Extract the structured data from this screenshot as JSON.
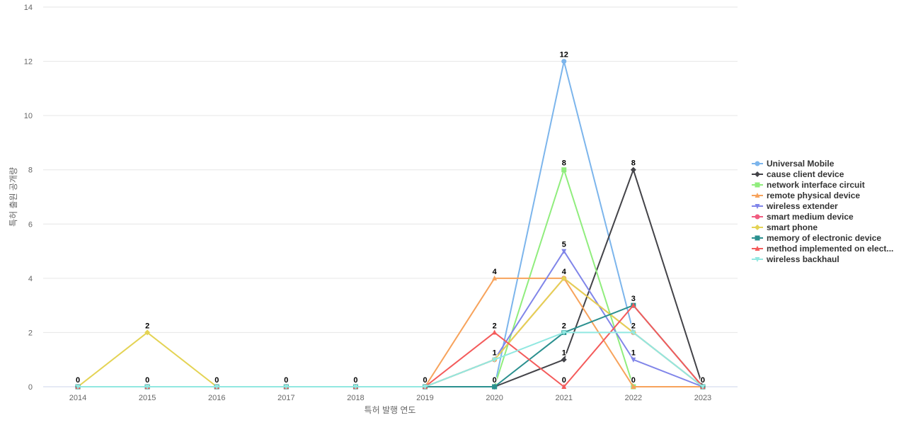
{
  "chart_data": {
    "type": "line",
    "title": "",
    "xlabel": "특허 발행 연도",
    "ylabel": "특허 출원 공개량",
    "categories": [
      "2014",
      "2015",
      "2016",
      "2017",
      "2018",
      "2019",
      "2020",
      "2021",
      "2022",
      "2023"
    ],
    "ylim": [
      0,
      14
    ],
    "yticks": [
      0,
      2,
      4,
      6,
      8,
      10,
      12,
      14
    ],
    "grid": true,
    "legend_position": "right",
    "series": [
      {
        "name": "Universal Mobile",
        "color": "#7cb5ec",
        "marker": "circle",
        "values": [
          0,
          0,
          0,
          0,
          0,
          0,
          0,
          12,
          2,
          0
        ]
      },
      {
        "name": "cause client device",
        "color": "#434348",
        "marker": "diamond",
        "values": [
          0,
          0,
          0,
          0,
          0,
          0,
          0,
          1,
          8,
          0
        ]
      },
      {
        "name": "network interface circuit",
        "color": "#90ed7d",
        "marker": "square",
        "values": [
          0,
          0,
          0,
          0,
          0,
          0,
          0,
          8,
          0,
          0
        ]
      },
      {
        "name": "remote physical device",
        "color": "#f7a35c",
        "marker": "triangle",
        "values": [
          0,
          0,
          0,
          0,
          0,
          0,
          4,
          4,
          0,
          0
        ]
      },
      {
        "name": "wireless extender",
        "color": "#8085e9",
        "marker": "triangle-down",
        "values": [
          0,
          0,
          0,
          0,
          0,
          0,
          1,
          5,
          1,
          0
        ]
      },
      {
        "name": "smart medium device",
        "color": "#f15c80",
        "marker": "circle",
        "values": [
          0,
          0,
          0,
          0,
          0,
          0,
          1,
          4,
          2,
          0
        ]
      },
      {
        "name": "smart phone",
        "color": "#e4d354",
        "marker": "diamond",
        "values": [
          0,
          2,
          0,
          0,
          0,
          0,
          1,
          4,
          2,
          0
        ]
      },
      {
        "name": "memory of electronic device",
        "color": "#2b908f",
        "marker": "square",
        "values": [
          0,
          0,
          0,
          0,
          0,
          0,
          0,
          2,
          3,
          0
        ]
      },
      {
        "name": "method implemented on elect...",
        "color": "#f45b5b",
        "marker": "triangle",
        "values": [
          0,
          0,
          0,
          0,
          0,
          0,
          2,
          0,
          3,
          0
        ]
      },
      {
        "name": "wireless backhaul",
        "color": "#91e8e1",
        "marker": "triangle-down",
        "values": [
          0,
          0,
          0,
          0,
          0,
          0,
          1,
          2,
          2,
          0
        ]
      }
    ],
    "data_labels": [
      {
        "x": "2014",
        "value": "0"
      },
      {
        "x": "2015",
        "value": "2"
      },
      {
        "x": "2015",
        "value": "0"
      },
      {
        "x": "2016",
        "value": "0"
      },
      {
        "x": "2017",
        "value": "0"
      },
      {
        "x": "2018",
        "value": "0"
      },
      {
        "x": "2019",
        "value": "0"
      },
      {
        "x": "2020",
        "value": "4"
      },
      {
        "x": "2020",
        "value": "2"
      },
      {
        "x": "2020",
        "value": "1"
      },
      {
        "x": "2020",
        "value": "0"
      },
      {
        "x": "2021",
        "value": "12"
      },
      {
        "x": "2021",
        "value": "8"
      },
      {
        "x": "2021",
        "value": "5"
      },
      {
        "x": "2021",
        "value": "4"
      },
      {
        "x": "2021",
        "value": "2"
      },
      {
        "x": "2021",
        "value": "1"
      },
      {
        "x": "2021",
        "value": "0"
      },
      {
        "x": "2022",
        "value": "8"
      },
      {
        "x": "2022",
        "value": "3"
      },
      {
        "x": "2022",
        "value": "2"
      },
      {
        "x": "2022",
        "value": "1"
      },
      {
        "x": "2022",
        "value": "0"
      },
      {
        "x": "2023",
        "value": "0"
      }
    ]
  }
}
